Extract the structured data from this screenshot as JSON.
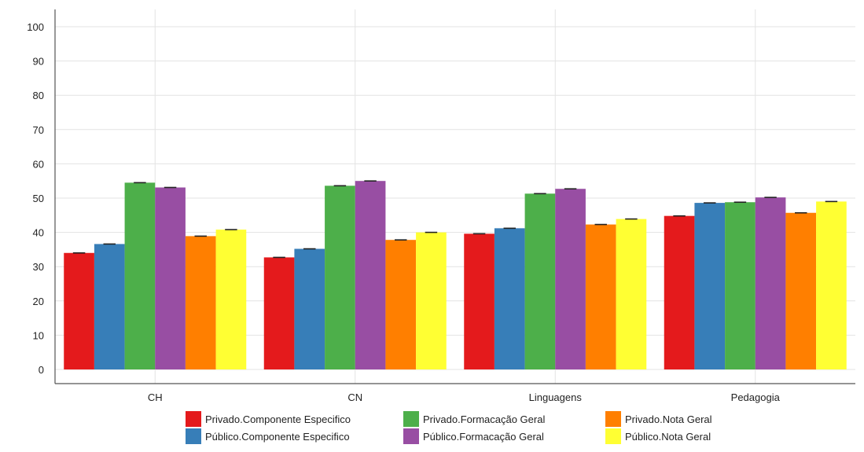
{
  "chart_data": {
    "type": "bar",
    "title": "",
    "xlabel": "",
    "ylabel": "",
    "ylim": [
      0,
      100
    ],
    "yticks": [
      0,
      10,
      20,
      30,
      40,
      50,
      60,
      70,
      80,
      90,
      100
    ],
    "grid": true,
    "legend_position": "bottom",
    "categories": [
      "CH",
      "CN",
      "Linguagens",
      "Pedagogia"
    ],
    "series": [
      {
        "name": "Privado.Componente Especifico",
        "color": "#e41a1c",
        "values": [
          34.0,
          32.7,
          39.6,
          44.8
        ]
      },
      {
        "name": "Público.Componente Especifico",
        "color": "#377eb8",
        "values": [
          36.6,
          35.2,
          41.2,
          48.6
        ]
      },
      {
        "name": "Privado.Formacação Geral",
        "color": "#4daf4a",
        "values": [
          54.5,
          53.6,
          51.3,
          48.8
        ]
      },
      {
        "name": "Público.Formacação Geral",
        "color": "#984ea3",
        "values": [
          53.1,
          55.0,
          52.7,
          50.2
        ]
      },
      {
        "name": "Privado.Nota Geral",
        "color": "#ff7f00",
        "values": [
          38.9,
          37.8,
          42.3,
          45.7
        ]
      },
      {
        "name": "Público.Nota Geral",
        "color": "#ffff33",
        "values": [
          40.8,
          40.0,
          43.9,
          49.0
        ]
      }
    ]
  }
}
